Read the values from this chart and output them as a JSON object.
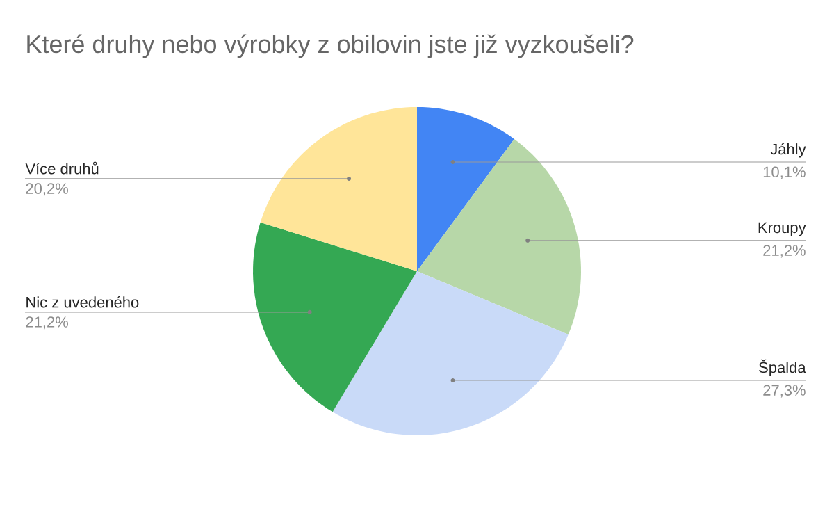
{
  "chart_data": {
    "type": "pie",
    "title": "Které druhy nebo výrobky z obilovin jste již vyzkoušeli?",
    "categories": [
      "Jáhly",
      "Kroupy",
      "Špalda",
      "Nic z uvedeného",
      "Více druhů"
    ],
    "values": [
      10.1,
      21.2,
      27.3,
      21.2,
      20.2
    ],
    "value_labels": [
      "10,1%",
      "21,2%",
      "27,3%",
      "21,2%",
      "20,2%"
    ],
    "colors": [
      "#4285f4",
      "#b7d7a8",
      "#c9daf8",
      "#34a853",
      "#ffe599"
    ]
  }
}
